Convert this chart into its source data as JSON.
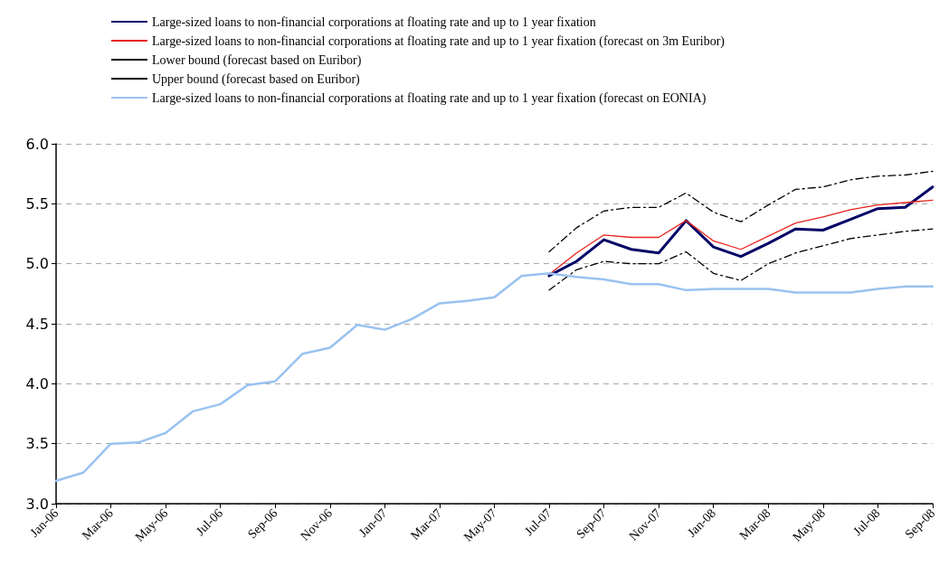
{
  "chart_data": {
    "type": "line",
    "categories": [
      "Jan-06",
      null,
      "Mar-06",
      null,
      "May-06",
      null,
      "Jul-06",
      null,
      "Sep-06",
      null,
      "Nov-06",
      null,
      "Jan-07",
      null,
      "Mar-07",
      null,
      "May-07",
      null,
      "Jul-07",
      null,
      "Sep-07",
      null,
      "Nov-07",
      null,
      "Jan-08",
      null,
      "Mar-08",
      null,
      "May-08",
      null,
      "Jul-08",
      null,
      "Sep-08"
    ],
    "series": [
      {
        "name": "Large-sized loans to non-financial corporations at floating rate and up to 1 year fixation",
        "color": "#000066",
        "line_style": "solid",
        "values": [
          null,
          null,
          null,
          null,
          null,
          null,
          null,
          null,
          null,
          null,
          null,
          null,
          null,
          null,
          null,
          null,
          null,
          null,
          4.9,
          5.02,
          5.2,
          5.12,
          5.09,
          5.36,
          5.14,
          5.06,
          5.17,
          5.29,
          5.28,
          5.37,
          5.46,
          5.47,
          5.64
        ]
      },
      {
        "name": "Large-sized loans to non-financial corporations at floating rate and up to 1 year fixation (forecast on 3m Euribor)",
        "color": "#e8231c",
        "line_style": "solid",
        "values": [
          null,
          null,
          null,
          null,
          null,
          null,
          null,
          null,
          null,
          null,
          null,
          null,
          null,
          null,
          null,
          null,
          null,
          null,
          4.91,
          5.09,
          5.24,
          5.22,
          5.22,
          5.36,
          5.19,
          5.12,
          5.23,
          5.34,
          5.39,
          5.45,
          5.49,
          5.51,
          5.53
        ]
      },
      {
        "name": "Lower bound (forecast based on Euribor)",
        "color": "#000000",
        "line_style": "dashed",
        "values": [
          null,
          null,
          null,
          null,
          null,
          null,
          null,
          null,
          null,
          null,
          null,
          null,
          null,
          null,
          null,
          null,
          null,
          null,
          4.78,
          4.95,
          5.02,
          5.0,
          5.0,
          5.1,
          4.92,
          4.86,
          5.0,
          5.09,
          5.15,
          5.21,
          5.24,
          5.27,
          5.29
        ]
      },
      {
        "name": "Upper bound (forecast based on Euribor)",
        "color": "#000000",
        "line_style": "dashed",
        "values": [
          null,
          null,
          null,
          null,
          null,
          null,
          null,
          null,
          null,
          null,
          null,
          null,
          null,
          null,
          null,
          null,
          null,
          null,
          5.1,
          5.3,
          5.44,
          5.47,
          5.47,
          5.59,
          5.43,
          5.35,
          5.49,
          5.62,
          5.64,
          5.7,
          5.73,
          5.74,
          5.77
        ]
      },
      {
        "name": "Large-sized loans to non-financial corporations at floating rate and up to 1 year fixation (forecast on EONIA)",
        "color": "#99c2f0",
        "line_style": "solid",
        "values": [
          3.19,
          3.26,
          3.5,
          3.51,
          3.59,
          3.77,
          3.83,
          3.99,
          4.02,
          4.25,
          4.3,
          4.49,
          4.45,
          4.54,
          4.67,
          4.69,
          4.72,
          4.9,
          4.92,
          4.89,
          4.87,
          4.83,
          4.83,
          4.78,
          4.79,
          4.79,
          4.79,
          4.76,
          4.76,
          4.76,
          4.79,
          4.81,
          4.81
        ]
      }
    ],
    "ylim": [
      3,
      6
    ],
    "yticks": [
      {
        "value": 3,
        "label": "3.0"
      },
      {
        "value": 3.5,
        "label": "3.5"
      },
      {
        "value": 4,
        "label": "4.0"
      },
      {
        "value": 4.5,
        "label": "4.5"
      },
      {
        "value": 5,
        "label": "5.0"
      },
      {
        "value": 5.5,
        "label": "5.5"
      },
      {
        "value": 6,
        "label": "6.0"
      }
    ],
    "grid": "y",
    "legend": "top left",
    "marker": "none"
  }
}
